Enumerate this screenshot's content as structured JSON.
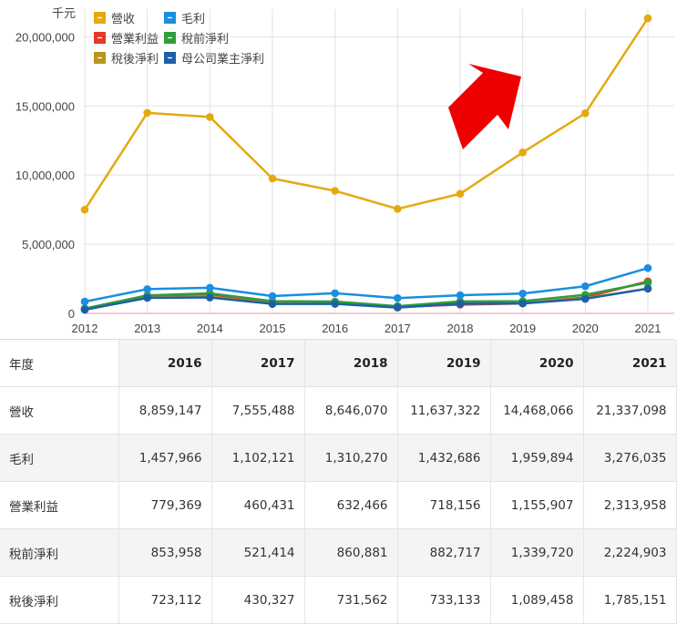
{
  "chart_data": {
    "type": "line",
    "unit_label": "千元",
    "x": [
      "2012",
      "2013",
      "2014",
      "2015",
      "2016",
      "2017",
      "2018",
      "2019",
      "2020",
      "2021"
    ],
    "ylim": [
      0,
      22000000
    ],
    "yticks": [
      "0",
      "5,000,000",
      "10,000,000",
      "15,000,000",
      "20,000,000"
    ],
    "ytick_values": [
      0,
      5000000,
      10000000,
      15000000,
      20000000
    ],
    "legend_position": "top-left",
    "grid": true,
    "series": [
      {
        "name": "營收",
        "color": "#e5a910",
        "values": [
          7500000,
          14500000,
          14200000,
          9750000,
          8859147,
          7555488,
          8646070,
          11637322,
          14468066,
          21337098
        ]
      },
      {
        "name": "毛利",
        "color": "#1a8ee0",
        "values": [
          850000,
          1750000,
          1850000,
          1250000,
          1457966,
          1102121,
          1310270,
          1432686,
          1959894,
          3276035
        ]
      },
      {
        "name": "營業利益",
        "color": "#e23a2a",
        "values": [
          300000,
          1250000,
          1380000,
          800000,
          779369,
          460431,
          632466,
          718156,
          1155907,
          2313958
        ]
      },
      {
        "name": "稅前淨利",
        "color": "#2e9e3a",
        "values": [
          350000,
          1300000,
          1450000,
          880000,
          853958,
          521414,
          860881,
          882717,
          1339720,
          2224903
        ]
      },
      {
        "name": "稅後淨利",
        "color": "#b89520",
        "values": [
          280000,
          1150000,
          1200000,
          700000,
          723112,
          430327,
          731562,
          733133,
          1089458,
          1785151
        ]
      },
      {
        "name": "母公司業主淨利",
        "color": "#1e5fa8",
        "values": [
          260000,
          1120000,
          1150000,
          680000,
          690000,
          420000,
          700000,
          720000,
          1050000,
          1790000
        ]
      }
    ],
    "annotation": "red-arrow-up-right"
  },
  "table": {
    "header_label": "年度",
    "years": [
      "2016",
      "2017",
      "2018",
      "2019",
      "2020",
      "2021"
    ],
    "rows": [
      {
        "label": "營收",
        "values": [
          "8,859,147",
          "7,555,488",
          "8,646,070",
          "11,637,322",
          "14,468,066",
          "21,337,098"
        ]
      },
      {
        "label": "毛利",
        "values": [
          "1,457,966",
          "1,102,121",
          "1,310,270",
          "1,432,686",
          "1,959,894",
          "3,276,035"
        ]
      },
      {
        "label": "營業利益",
        "values": [
          "779,369",
          "460,431",
          "632,466",
          "718,156",
          "1,155,907",
          "2,313,958"
        ]
      },
      {
        "label": "稅前淨利",
        "values": [
          "853,958",
          "521,414",
          "860,881",
          "882,717",
          "1,339,720",
          "2,224,903"
        ]
      },
      {
        "label": "稅後淨利",
        "values": [
          "723,112",
          "430,327",
          "731,562",
          "733,133",
          "1,089,458",
          "1,785,151"
        ]
      }
    ]
  }
}
